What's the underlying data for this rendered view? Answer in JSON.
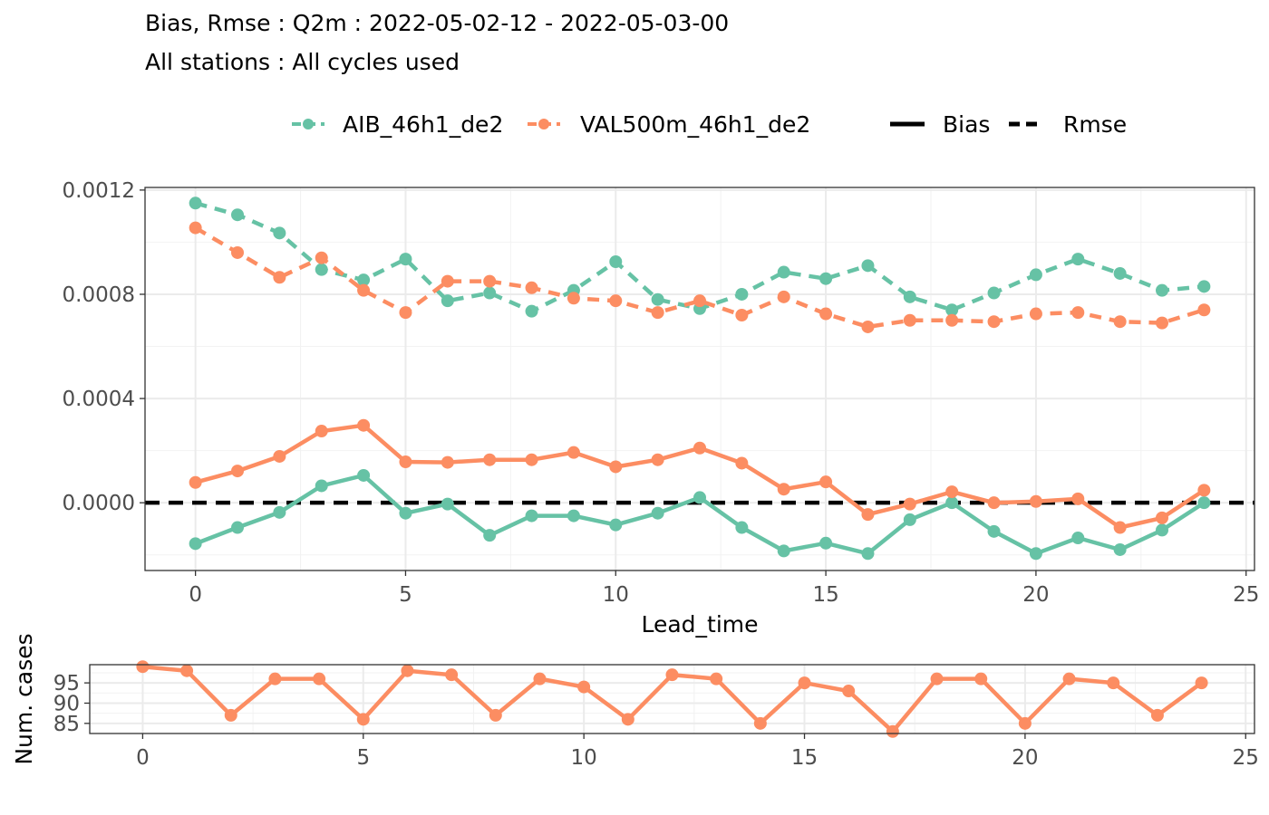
{
  "title": "Bias, Rmse : Q2m : 2022-05-02-12 - 2022-05-03-00",
  "subtitle": "All stations : All cycles used",
  "legend": {
    "models": [
      "AIB_46h1_de2",
      "VAL500m_46h1_de2"
    ],
    "linetypes": [
      "Bias",
      "Rmse"
    ]
  },
  "colors": {
    "AIB_46h1_de2": "#66c2a5",
    "VAL500m_46h1_de2": "#fc8d62",
    "zero_line": "#000000"
  },
  "chart_data": [
    {
      "type": "line",
      "xlabel": "Lead_time",
      "ylabel": "",
      "x_ticks": [
        "0",
        "5",
        "10",
        "15",
        "20",
        "25"
      ],
      "y_ticks": [
        "0.0000",
        "0.0004",
        "0.0008",
        "0.0012"
      ],
      "xlim": [
        -1.2,
        25.2
      ],
      "ylim": [
        -0.00026,
        0.00121
      ],
      "grid": true,
      "legend_position": "top",
      "x": [
        0,
        1,
        2,
        3,
        4,
        5,
        6,
        7,
        8,
        9,
        10,
        11,
        12,
        13,
        14,
        15,
        16,
        17,
        18,
        19,
        20,
        21,
        22,
        23,
        24
      ],
      "series": [
        {
          "name": "AIB_46h1_de2",
          "line": "Bias",
          "values": [
            -0.000157,
            -9.5e-05,
            -3.7e-05,
            6.5e-05,
            0.000105,
            -4e-05,
            -5e-06,
            -0.000125,
            -5e-05,
            -5e-05,
            -8.5e-05,
            -4e-05,
            2e-05,
            -9.5e-05,
            -0.000185,
            -0.000155,
            -0.000195,
            -6.5e-05,
            0.0,
            -0.00011,
            -0.000195,
            -0.000135,
            -0.00018,
            -0.000105,
            0.0
          ]
        },
        {
          "name": "VAL500m_46h1_de2",
          "line": "Bias",
          "values": [
            7.8e-05,
            0.000122,
            0.000178,
            0.000275,
            0.000297,
            0.000157,
            0.000155,
            0.000165,
            0.000165,
            0.000193,
            0.000138,
            0.000165,
            0.00021,
            0.000152,
            5.2e-05,
            8e-05,
            -4.5e-05,
            -5e-06,
            4.2e-05,
            0.0,
            5e-06,
            1.5e-05,
            -9.5e-05,
            -5.8e-05,
            4.8e-05
          ]
        },
        {
          "name": "AIB_46h1_de2",
          "line": "Rmse",
          "values": [
            0.00115,
            0.001105,
            0.001035,
            0.000895,
            0.000855,
            0.000935,
            0.000775,
            0.000805,
            0.000735,
            0.000815,
            0.000925,
            0.00078,
            0.000745,
            0.0008,
            0.000885,
            0.00086,
            0.00091,
            0.00079,
            0.00074,
            0.000805,
            0.000875,
            0.000935,
            0.00088,
            0.000815,
            0.00083
          ]
        },
        {
          "name": "VAL500m_46h1_de2",
          "line": "Rmse",
          "values": [
            0.001055,
            0.00096,
            0.000865,
            0.00094,
            0.000815,
            0.00073,
            0.00085,
            0.00085,
            0.000825,
            0.000785,
            0.000775,
            0.00073,
            0.000775,
            0.00072,
            0.00079,
            0.000725,
            0.000675,
            0.0007,
            0.0007,
            0.000695,
            0.000725,
            0.00073,
            0.000695,
            0.00069,
            0.00074
          ]
        }
      ],
      "reference_line": {
        "y": 0,
        "style": "dashed"
      }
    },
    {
      "type": "line",
      "xlabel": "",
      "ylabel": "Num. cases",
      "x_ticks": [
        "0",
        "5",
        "10",
        "15",
        "20",
        "25"
      ],
      "y_ticks": [
        "85",
        "90",
        "95"
      ],
      "xlim": [
        -1.2,
        25.2
      ],
      "ylim": [
        82.5,
        99.5
      ],
      "grid": true,
      "x": [
        0,
        1,
        2,
        3,
        4,
        5,
        6,
        7,
        8,
        9,
        10,
        11,
        12,
        13,
        14,
        15,
        16,
        17,
        18,
        19,
        20,
        21,
        22,
        23,
        24
      ],
      "series": [
        {
          "name": "VAL500m_46h1_de2",
          "values": [
            99,
            98,
            87,
            96,
            96,
            86,
            98,
            97,
            87,
            96,
            94,
            86,
            97,
            96,
            85,
            95,
            93,
            83,
            96,
            96,
            85,
            96,
            95,
            87,
            95
          ]
        }
      ]
    }
  ]
}
